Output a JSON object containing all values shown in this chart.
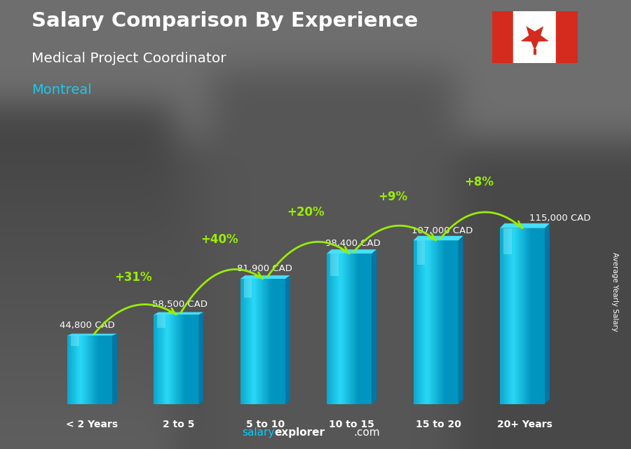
{
  "title_line1": "Salary Comparison By Experience",
  "subtitle_line1": "Medical Project Coordinator",
  "subtitle_line2": "Montreal",
  "ylabel": "Average Yearly Salary",
  "categories": [
    "< 2 Years",
    "2 to 5",
    "5 to 10",
    "10 to 15",
    "15 to 20",
    "20+ Years"
  ],
  "values": [
    44800,
    58500,
    81900,
    98400,
    107000,
    115000
  ],
  "value_labels": [
    "44,800 CAD",
    "58,500 CAD",
    "81,900 CAD",
    "98,400 CAD",
    "107,000 CAD",
    "115,000 CAD"
  ],
  "pct_labels": [
    "+31%",
    "+40%",
    "+20%",
    "+9%",
    "+8%"
  ],
  "bar_front_light": "#29D8F5",
  "bar_front_dark": "#0BB0D8",
  "bar_side_color": "#0077A8",
  "bar_top_color": "#55E8FF",
  "bg_gray": "#888888",
  "title_color": "#FFFFFF",
  "montreal_color": "#1EC8E8",
  "pct_color": "#99EE00",
  "arrow_color": "#99EE00",
  "label_color": "#FFFFFF",
  "ylim": [
    0,
    135000
  ],
  "footer_salary_color": "#00CFFF",
  "footer_explorer_color": "#FFFFFF"
}
